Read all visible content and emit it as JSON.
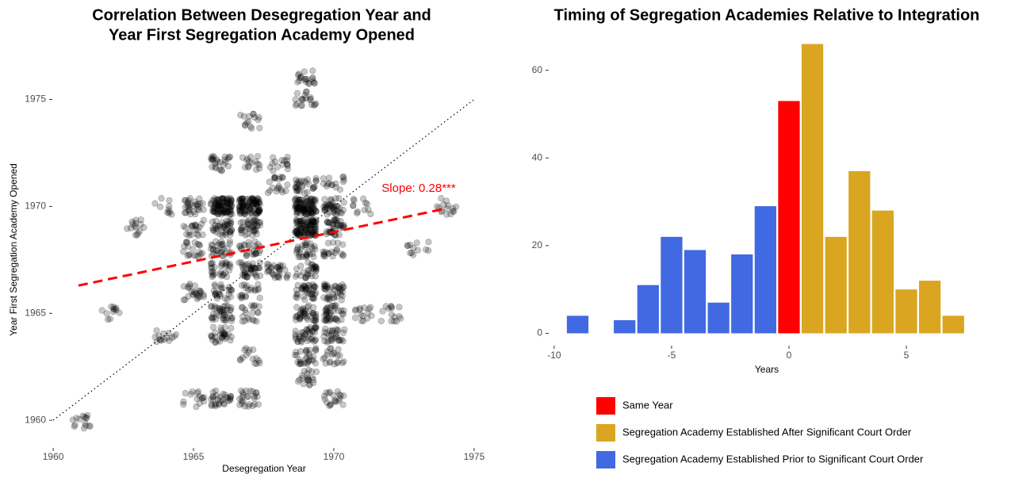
{
  "chart_data": [
    {
      "type": "scatter",
      "title": [
        "Correlation Between Desegregation Year and",
        "Year First Segregation Academy Opened"
      ],
      "x_label": "Desegregation Year",
      "y_label": "Year First Segregation Academy Opened",
      "x": [
        1961,
        1962,
        1963,
        1964,
        1964,
        1965,
        1965,
        1965,
        1965,
        1965,
        1966,
        1966,
        1966,
        1966,
        1966,
        1966,
        1966,
        1966,
        1966,
        1967,
        1967,
        1967,
        1967,
        1967,
        1967,
        1967,
        1967,
        1967,
        1967,
        1968,
        1968,
        1968,
        1969,
        1969,
        1969,
        1969,
        1969,
        1969,
        1969,
        1969,
        1969,
        1969,
        1969,
        1969,
        1970,
        1970,
        1970,
        1970,
        1970,
        1970,
        1970,
        1970,
        1970,
        1971,
        1971,
        1972,
        1973,
        1974
      ],
      "y": [
        1960,
        1965,
        1969,
        1964,
        1970,
        1970,
        1969,
        1968,
        1966,
        1961,
        1972,
        1970,
        1969,
        1968,
        1967,
        1966,
        1965,
        1964,
        1961,
        1974,
        1972,
        1970,
        1969,
        1968,
        1967,
        1966,
        1965,
        1963,
        1961,
        1972,
        1971,
        1967,
        1976,
        1975,
        1971,
        1970,
        1969,
        1968,
        1967,
        1966,
        1965,
        1964,
        1963,
        1962,
        1971,
        1970,
        1969,
        1968,
        1966,
        1965,
        1964,
        1963,
        1961,
        1970,
        1965,
        1965,
        1968,
        1970
      ],
      "counts": [
        15,
        12,
        15,
        15,
        10,
        30,
        20,
        20,
        25,
        15,
        25,
        100,
        40,
        30,
        30,
        25,
        40,
        30,
        30,
        15,
        15,
        100,
        40,
        25,
        40,
        20,
        20,
        15,
        25,
        15,
        20,
        30,
        20,
        20,
        30,
        100,
        100,
        30,
        30,
        40,
        40,
        40,
        30,
        20,
        15,
        40,
        40,
        20,
        40,
        40,
        30,
        20,
        20,
        12,
        15,
        15,
        12,
        15
      ],
      "color": "#000000",
      "xlim": [
        1959.8,
        1975.2
      ],
      "ylim": [
        1959.45,
        1976.5
      ],
      "xticks": [
        1960,
        1965,
        1970,
        1975
      ],
      "yticks": [
        1960,
        1965,
        1970,
        1975
      ],
      "fit_line": {
        "x": [
          1960.9,
          1974
        ],
        "y": [
          1966.3,
          1969.9
        ],
        "color": "#ff0000"
      },
      "reference_line": {
        "x": [
          1960,
          1975
        ],
        "y": [
          1960,
          1975
        ]
      },
      "annotation": "Slope: 0.28***"
    },
    {
      "type": "bar",
      "title": "Timing of Segregation Academies Relative to Integration",
      "x_label": "Years",
      "series": [
        {
          "name": "Same Year",
          "color": "#ff0000",
          "x": [
            0
          ],
          "values": [
            53
          ]
        },
        {
          "name": "Segregation Academy Established After Significant Court Order",
          "color": "#daa520",
          "x": [
            1,
            2,
            3,
            4,
            5,
            6,
            7
          ],
          "values": [
            66,
            22,
            37,
            28,
            10,
            12,
            4
          ]
        },
        {
          "name": "Segregation Academy Established Prior to Significant Court Order",
          "color": "#4169e1",
          "x": [
            -9,
            -7,
            -6,
            -5,
            -4,
            -3,
            -2,
            -1
          ],
          "values": [
            4,
            3,
            11,
            22,
            19,
            7,
            18,
            29
          ]
        }
      ],
      "xlim": [
        -10.3,
        7.6
      ],
      "ylim": [
        -1,
        67
      ],
      "xticks": [
        -10,
        -5,
        0,
        5
      ],
      "yticks": [
        0,
        20,
        40,
        60
      ]
    }
  ]
}
